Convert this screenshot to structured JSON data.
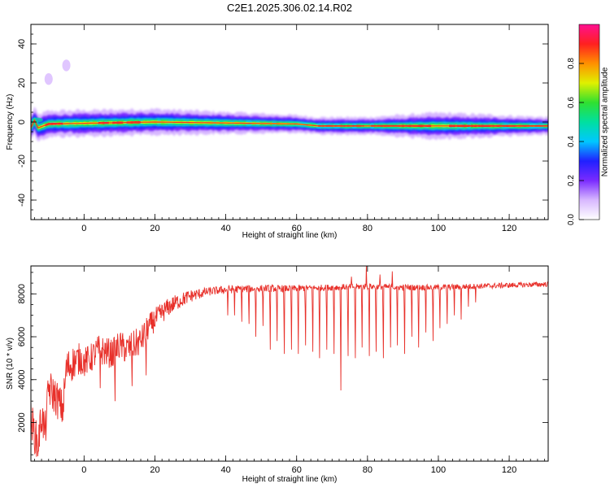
{
  "title": "C2E1.2025.306.02.14.R02",
  "colors": {
    "snr_line": "#e8302a",
    "center_line": "#e8302a",
    "axis": "#000000",
    "colormap": [
      "#ffffff",
      "#d8b8ff",
      "#7a2bff",
      "#2020ff",
      "#00c8ff",
      "#00e0a0",
      "#30e030",
      "#e0f000",
      "#ff9000",
      "#ff2020",
      "#ff1090"
    ]
  },
  "chart_data": [
    {
      "id": "spectrogram",
      "type": "heatmap",
      "xlabel": "Height of straight line (km)",
      "ylabel": "Frequency (Hz)",
      "xlim": [
        -15,
        131
      ],
      "ylim": [
        -50,
        50
      ],
      "xticks": [
        0,
        20,
        40,
        60,
        80,
        100,
        120
      ],
      "yticks": [
        -40,
        -20,
        0,
        20,
        40
      ],
      "colorbar": {
        "label": "Normalized spectral amplitude",
        "range": [
          0,
          1
        ],
        "ticks": [
          "0.0",
          "0.2",
          "0.4",
          "0.6",
          "0.8"
        ]
      },
      "band_center_hz": [
        {
          "x": -15,
          "y": -3
        },
        {
          "x": -14,
          "y": 1
        },
        {
          "x": -13,
          "y": -3
        },
        {
          "x": -10,
          "y": -1
        },
        {
          "x": 20,
          "y": 0
        },
        {
          "x": 60,
          "y": -1
        },
        {
          "x": 66,
          "y": -2
        },
        {
          "x": 131,
          "y": -2
        }
      ],
      "band_halfwidth_hz": [
        {
          "x": -15,
          "y": 3
        },
        {
          "x": 0,
          "y": 3
        },
        {
          "x": 20,
          "y": 3
        },
        {
          "x": 40,
          "y": 2.5
        },
        {
          "x": 60,
          "y": 2
        },
        {
          "x": 80,
          "y": 2
        },
        {
          "x": 100,
          "y": 3
        },
        {
          "x": 131,
          "y": 2
        }
      ],
      "core_segments_x": [
        [
          -11,
          -6
        ],
        [
          4,
          7
        ],
        [
          8,
          11
        ],
        [
          12,
          16
        ],
        [
          66,
          79
        ],
        [
          81,
          98
        ],
        [
          103,
          131
        ]
      ],
      "faint_spots": [
        {
          "x": -10,
          "y": 22
        },
        {
          "x": -5,
          "y": 29
        }
      ]
    },
    {
      "id": "snr",
      "type": "line",
      "xlabel": "Height of straight line (km)",
      "ylabel": "SNR (10 * v/v)",
      "xlim": [
        -15,
        131
      ],
      "ylim": [
        200,
        9300
      ],
      "xticks": [
        0,
        20,
        40,
        60,
        80,
        100,
        120
      ],
      "yticks": [
        2000,
        4000,
        6000,
        8000
      ],
      "baseline": [
        {
          "x": -15,
          "y": 2200
        },
        {
          "x": -14,
          "y": 1500
        },
        {
          "x": -13,
          "y": 900
        },
        {
          "x": -12,
          "y": 2400
        },
        {
          "x": -11,
          "y": 1500
        },
        {
          "x": -10,
          "y": 3600
        },
        {
          "x": -8,
          "y": 3200
        },
        {
          "x": -6,
          "y": 2600
        },
        {
          "x": -5,
          "y": 4500
        },
        {
          "x": -3,
          "y": 4800
        },
        {
          "x": -1,
          "y": 5000
        },
        {
          "x": 0,
          "y": 4800
        },
        {
          "x": 2,
          "y": 5000
        },
        {
          "x": 4,
          "y": 5400
        },
        {
          "x": 6,
          "y": 5300
        },
        {
          "x": 8,
          "y": 5200
        },
        {
          "x": 10,
          "y": 5600
        },
        {
          "x": 12,
          "y": 5400
        },
        {
          "x": 14,
          "y": 5600
        },
        {
          "x": 16,
          "y": 5800
        },
        {
          "x": 18,
          "y": 6400
        },
        {
          "x": 20,
          "y": 6800
        },
        {
          "x": 22,
          "y": 7100
        },
        {
          "x": 24,
          "y": 7400
        },
        {
          "x": 26,
          "y": 7600
        },
        {
          "x": 30,
          "y": 7900
        },
        {
          "x": 35,
          "y": 8100
        },
        {
          "x": 40,
          "y": 8200
        },
        {
          "x": 50,
          "y": 8250
        },
        {
          "x": 60,
          "y": 8250
        },
        {
          "x": 70,
          "y": 8300
        },
        {
          "x": 80,
          "y": 8350
        },
        {
          "x": 90,
          "y": 8300
        },
        {
          "x": 100,
          "y": 8300
        },
        {
          "x": 110,
          "y": 8350
        },
        {
          "x": 120,
          "y": 8400
        },
        {
          "x": 131,
          "y": 8450
        }
      ],
      "noise": [
        {
          "x": -15,
          "y": 900
        },
        {
          "x": -5,
          "y": 900
        },
        {
          "x": 0,
          "y": 700
        },
        {
          "x": 15,
          "y": 700
        },
        {
          "x": 25,
          "y": 400
        },
        {
          "x": 35,
          "y": 200
        },
        {
          "x": 60,
          "y": 150
        },
        {
          "x": 131,
          "y": 120
        }
      ],
      "dips": [
        {
          "x": 4.5,
          "y": 3600
        },
        {
          "x": 8.8,
          "y": 3000
        },
        {
          "x": 13.5,
          "y": 3700
        },
        {
          "x": 17.5,
          "y": 4200
        },
        {
          "x": 40.5,
          "y": 7000
        },
        {
          "x": 42.5,
          "y": 7000
        },
        {
          "x": 44.5,
          "y": 6700
        },
        {
          "x": 46.5,
          "y": 6600
        },
        {
          "x": 48.5,
          "y": 6000
        },
        {
          "x": 50.5,
          "y": 6500
        },
        {
          "x": 52.5,
          "y": 5400
        },
        {
          "x": 54.5,
          "y": 5800
        },
        {
          "x": 56.5,
          "y": 5200
        },
        {
          "x": 58.5,
          "y": 5400
        },
        {
          "x": 60.5,
          "y": 5200
        },
        {
          "x": 62.5,
          "y": 5600
        },
        {
          "x": 64.5,
          "y": 5300
        },
        {
          "x": 66.5,
          "y": 5000
        },
        {
          "x": 68.5,
          "y": 5400
        },
        {
          "x": 70.5,
          "y": 5200
        },
        {
          "x": 72.5,
          "y": 3500
        },
        {
          "x": 74.5,
          "y": 5100
        },
        {
          "x": 76.5,
          "y": 5000
        },
        {
          "x": 78.5,
          "y": 5500
        },
        {
          "x": 80.5,
          "y": 5100
        },
        {
          "x": 82.5,
          "y": 5300
        },
        {
          "x": 84.5,
          "y": 5000
        },
        {
          "x": 86.5,
          "y": 5500
        },
        {
          "x": 88.5,
          "y": 5600
        },
        {
          "x": 90.5,
          "y": 5200
        },
        {
          "x": 92.5,
          "y": 6000
        },
        {
          "x": 94.5,
          "y": 5500
        },
        {
          "x": 96.5,
          "y": 6200
        },
        {
          "x": 98.5,
          "y": 5800
        },
        {
          "x": 100.5,
          "y": 6400
        },
        {
          "x": 102.5,
          "y": 6600
        },
        {
          "x": 104.5,
          "y": 7000
        },
        {
          "x": 106.5,
          "y": 6800
        },
        {
          "x": 108.5,
          "y": 7400
        },
        {
          "x": 110.5,
          "y": 7600
        }
      ],
      "spikes": [
        {
          "x": 79.7,
          "y": 9300
        },
        {
          "x": 87.0,
          "y": 9050
        },
        {
          "x": 83.5,
          "y": 8900
        },
        {
          "x": 75.5,
          "y": 8800
        }
      ]
    }
  ]
}
